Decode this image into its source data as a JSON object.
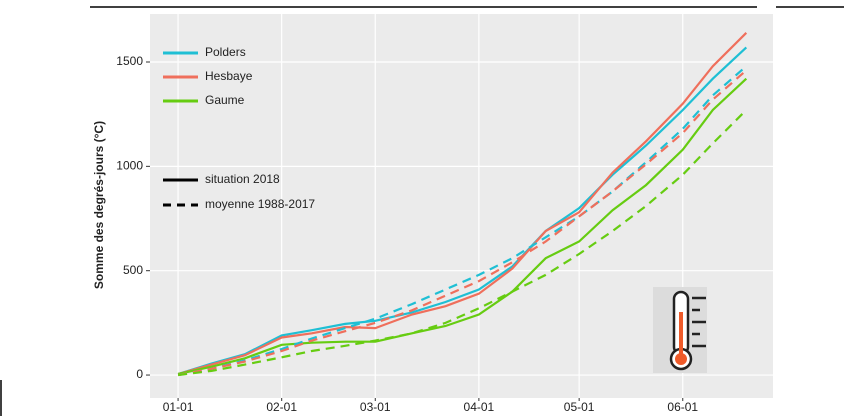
{
  "chart_data": {
    "type": "line",
    "y_label": "Somme des degrés-jours (°C)",
    "x": [
      0,
      10,
      20,
      31,
      40,
      50,
      59,
      70,
      80,
      90,
      100,
      110,
      120,
      130,
      140,
      151,
      160,
      170
    ],
    "xlim": [
      -8.4,
      178
    ],
    "xticks": [
      {
        "value": 0,
        "label": "01-01"
      },
      {
        "value": 31,
        "label": "02-01"
      },
      {
        "value": 59,
        "label": "03-01"
      },
      {
        "value": 90,
        "label": "04-01"
      },
      {
        "value": 120,
        "label": "05-01"
      },
      {
        "value": 151,
        "label": "06-01"
      }
    ],
    "ylim": [
      -110,
      1730
    ],
    "yticks": [
      0,
      500,
      1000,
      1500
    ],
    "grid": true,
    "legend": "top-left",
    "series": [
      {
        "name": "Polders",
        "color": "#1fbfd4",
        "values": [
          5,
          55,
          100,
          190,
          215,
          245,
          260,
          300,
          350,
          410,
          520,
          690,
          800,
          960,
          1100,
          1270,
          1420,
          1570
        ],
        "mean_values": [
          0,
          30,
          70,
          125,
          175,
          225,
          270,
          340,
          410,
          480,
          560,
          660,
          760,
          880,
          1020,
          1180,
          1340,
          1480
        ]
      },
      {
        "name": "Hesbaye",
        "color": "#ef6f5c",
        "values": [
          5,
          50,
          95,
          180,
          200,
          230,
          225,
          290,
          330,
          390,
          510,
          690,
          780,
          970,
          1120,
          1300,
          1480,
          1640
        ],
        "mean_values": [
          0,
          30,
          65,
          115,
          165,
          210,
          250,
          310,
          380,
          450,
          540,
          640,
          760,
          880,
          1010,
          1160,
          1320,
          1460
        ]
      },
      {
        "name": "Gaume",
        "color": "#66cc11",
        "values": [
          5,
          40,
          80,
          145,
          155,
          160,
          160,
          200,
          235,
          290,
          400,
          560,
          640,
          790,
          910,
          1080,
          1270,
          1420
        ],
        "mean_values": [
          0,
          20,
          50,
          85,
          115,
          140,
          165,
          200,
          250,
          320,
          400,
          480,
          580,
          690,
          810,
          960,
          1110,
          1270
        ]
      }
    ],
    "line_styles": [
      {
        "name": "situation 2018",
        "dash": "solid"
      },
      {
        "name": "moyenne 1988-2017",
        "dash": "dashed"
      }
    ]
  }
}
